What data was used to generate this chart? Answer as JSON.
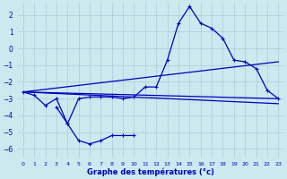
{
  "xlabel": "Graphe des températures (°c)",
  "background_color": "#cce9f0",
  "grid_color": "#aaccd5",
  "line_color": "#0000bb",
  "xlim": [
    -0.5,
    23.5
  ],
  "ylim": [
    -6.5,
    2.7
  ],
  "yticks": [
    -6,
    -5,
    -4,
    -3,
    -2,
    -1,
    0,
    1,
    2
  ],
  "xticks": [
    0,
    1,
    2,
    3,
    4,
    5,
    6,
    7,
    8,
    9,
    10,
    11,
    12,
    13,
    14,
    15,
    16,
    17,
    18,
    19,
    20,
    21,
    22,
    23
  ],
  "line1_x": [
    0,
    1,
    2,
    3,
    4,
    5,
    6,
    7,
    8,
    9,
    10,
    11,
    12,
    13,
    14,
    15,
    16,
    17,
    18,
    19,
    20,
    21,
    22,
    23
  ],
  "line1_y": [
    -2.6,
    -2.8,
    -3.4,
    -3.0,
    -4.5,
    -3.0,
    -2.9,
    -2.9,
    -2.9,
    -3.0,
    -2.9,
    -2.3,
    -2.3,
    -0.7,
    1.5,
    2.5,
    1.5,
    1.2,
    0.6,
    -0.7,
    -0.8,
    -1.2,
    -2.5,
    -3.0
  ],
  "line2_x": [
    0,
    23
  ],
  "line2_y": [
    -2.6,
    -0.8
  ],
  "line3_x": [
    0,
    23
  ],
  "line3_y": [
    -2.6,
    -3.0
  ],
  "line4_x": [
    0,
    23
  ],
  "line4_y": [
    -2.6,
    -3.3
  ],
  "line5_x": [
    3,
    4,
    5,
    6,
    7,
    8,
    9,
    10
  ],
  "line5_y": [
    -3.5,
    -4.5,
    -5.5,
    -5.7,
    -5.5,
    -5.2,
    -5.2,
    -5.2
  ]
}
